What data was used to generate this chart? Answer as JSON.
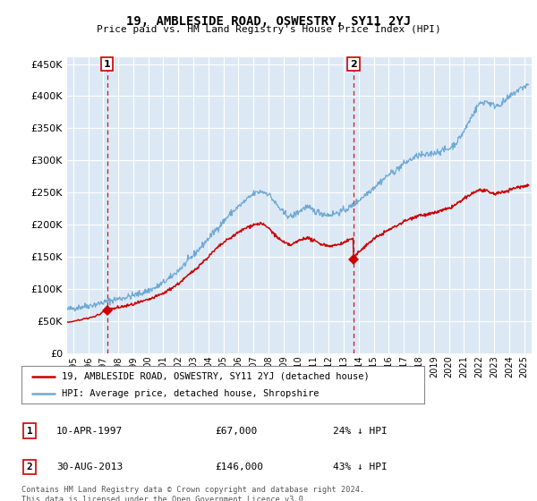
{
  "title": "19, AMBLESIDE ROAD, OSWESTRY, SY11 2YJ",
  "subtitle": "Price paid vs. HM Land Registry's House Price Index (HPI)",
  "ylim": [
    0,
    460000
  ],
  "yticks": [
    0,
    50000,
    100000,
    150000,
    200000,
    250000,
    300000,
    350000,
    400000,
    450000
  ],
  "xlim_start": 1994.6,
  "xlim_end": 2025.5,
  "background_color": "#dce9f5",
  "grid_color": "#ffffff",
  "transaction1_date": 1997.27,
  "transaction1_price": 67000,
  "transaction2_date": 2013.66,
  "transaction2_price": 146000,
  "legend_line1": "19, AMBLESIDE ROAD, OSWESTRY, SY11 2YJ (detached house)",
  "legend_line2": "HPI: Average price, detached house, Shropshire",
  "annotation1_date": "10-APR-1997",
  "annotation1_price": "£67,000",
  "annotation1_hpi": "24% ↓ HPI",
  "annotation2_date": "30-AUG-2013",
  "annotation2_price": "£146,000",
  "annotation2_hpi": "43% ↓ HPI",
  "footer": "Contains HM Land Registry data © Crown copyright and database right 2024.\nThis data is licensed under the Open Government Licence v3.0.",
  "hpi_color": "#6fa8d4",
  "sale_color": "#cc0000",
  "vline_color": "#cc0000",
  "hpi_anchors": [
    [
      1994.6,
      68000
    ],
    [
      1995.5,
      72000
    ],
    [
      1996.5,
      76000
    ],
    [
      1997.5,
      82000
    ],
    [
      1998.5,
      87000
    ],
    [
      1999.5,
      93000
    ],
    [
      2000.5,
      102000
    ],
    [
      2001.5,
      118000
    ],
    [
      2002.5,
      140000
    ],
    [
      2003.5,
      165000
    ],
    [
      2004.5,
      192000
    ],
    [
      2005.0,
      205000
    ],
    [
      2005.5,
      218000
    ],
    [
      2006.0,
      228000
    ],
    [
      2006.5,
      238000
    ],
    [
      2007.0,
      248000
    ],
    [
      2007.5,
      252000
    ],
    [
      2008.0,
      248000
    ],
    [
      2008.5,
      232000
    ],
    [
      2009.0,
      218000
    ],
    [
      2009.5,
      212000
    ],
    [
      2010.0,
      220000
    ],
    [
      2010.5,
      228000
    ],
    [
      2011.0,
      222000
    ],
    [
      2011.5,
      218000
    ],
    [
      2012.0,
      215000
    ],
    [
      2012.5,
      218000
    ],
    [
      2013.0,
      222000
    ],
    [
      2013.5,
      228000
    ],
    [
      2014.0,
      238000
    ],
    [
      2014.5,
      248000
    ],
    [
      2015.0,
      258000
    ],
    [
      2015.5,
      268000
    ],
    [
      2016.0,
      278000
    ],
    [
      2016.5,
      285000
    ],
    [
      2017.0,
      295000
    ],
    [
      2017.5,
      302000
    ],
    [
      2018.0,
      308000
    ],
    [
      2018.5,
      308000
    ],
    [
      2019.0,
      312000
    ],
    [
      2019.5,
      315000
    ],
    [
      2020.0,
      318000
    ],
    [
      2020.5,
      328000
    ],
    [
      2021.0,
      345000
    ],
    [
      2021.5,
      368000
    ],
    [
      2022.0,
      388000
    ],
    [
      2022.5,
      392000
    ],
    [
      2023.0,
      385000
    ],
    [
      2023.5,
      388000
    ],
    [
      2024.0,
      398000
    ],
    [
      2024.5,
      408000
    ],
    [
      2025.0,
      415000
    ],
    [
      2025.3,
      418000
    ]
  ],
  "sale_anchors_pre1": [
    [
      1994.6,
      48000
    ],
    [
      1995.5,
      52000
    ],
    [
      1996.5,
      57000
    ],
    [
      1997.27,
      67000
    ]
  ],
  "sale_anchors_post1_pre2": [
    [
      1997.27,
      67000
    ],
    [
      1998.0,
      71000
    ],
    [
      1999.0,
      76000
    ],
    [
      2000.0,
      83000
    ],
    [
      2001.0,
      93000
    ],
    [
      2002.0,
      108000
    ],
    [
      2003.0,
      128000
    ],
    [
      2004.0,
      150000
    ],
    [
      2004.5,
      162000
    ],
    [
      2005.0,
      172000
    ],
    [
      2005.5,
      180000
    ],
    [
      2006.0,
      188000
    ],
    [
      2006.5,
      195000
    ],
    [
      2007.0,
      200000
    ],
    [
      2007.5,
      202000
    ],
    [
      2008.0,
      195000
    ],
    [
      2008.5,
      182000
    ],
    [
      2009.0,
      172000
    ],
    [
      2009.5,
      168000
    ],
    [
      2010.0,
      175000
    ],
    [
      2010.5,
      180000
    ],
    [
      2011.0,
      175000
    ],
    [
      2011.5,
      170000
    ],
    [
      2012.0,
      167000
    ],
    [
      2012.5,
      168000
    ],
    [
      2013.0,
      172000
    ],
    [
      2013.5,
      178000
    ],
    [
      2013.66,
      178000
    ],
    [
      2013.66,
      146000
    ]
  ],
  "sale_anchors_post2": [
    [
      2013.66,
      146000
    ],
    [
      2014.0,
      158000
    ],
    [
      2014.5,
      168000
    ],
    [
      2015.0,
      178000
    ],
    [
      2015.5,
      185000
    ],
    [
      2016.0,
      192000
    ],
    [
      2016.5,
      198000
    ],
    [
      2017.0,
      205000
    ],
    [
      2017.5,
      210000
    ],
    [
      2018.0,
      215000
    ],
    [
      2018.5,
      215000
    ],
    [
      2019.0,
      218000
    ],
    [
      2019.5,
      222000
    ],
    [
      2020.0,
      225000
    ],
    [
      2020.5,
      232000
    ],
    [
      2021.0,
      240000
    ],
    [
      2021.5,
      248000
    ],
    [
      2022.0,
      254000
    ],
    [
      2022.5,
      252000
    ],
    [
      2023.0,
      248000
    ],
    [
      2023.5,
      250000
    ],
    [
      2024.0,
      254000
    ],
    [
      2024.5,
      258000
    ],
    [
      2025.0,
      260000
    ],
    [
      2025.3,
      262000
    ]
  ]
}
